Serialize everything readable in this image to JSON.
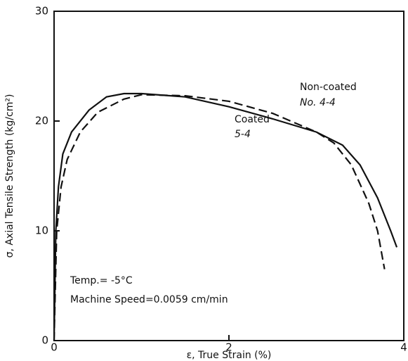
{
  "chart_data": {
    "type": "line",
    "xlabel": "ε, True Strain (%)",
    "ylabel": "σ, Axial Tensile Strength (kg/cm²)",
    "xlim": [
      0,
      4
    ],
    "xticks": [
      0,
      2,
      4
    ],
    "ylim": [
      0,
      30
    ],
    "yticks": [
      0,
      10,
      20,
      30
    ],
    "series": [
      {
        "name": "Coated",
        "color": "#111111",
        "style": "solid",
        "x": [
          0,
          0.02,
          0.05,
          0.1,
          0.2,
          0.4,
          0.6,
          0.8,
          1.0,
          1.5,
          2.0,
          2.5,
          3.0,
          3.3,
          3.5,
          3.7,
          3.85,
          3.92
        ],
        "values": [
          0,
          10,
          14,
          17,
          19,
          21,
          22.2,
          22.5,
          22.5,
          22.2,
          21.3,
          20.2,
          19,
          17.8,
          16,
          13,
          10,
          8.5
        ]
      },
      {
        "name": "Non-coated",
        "color": "#111111",
        "style": "dashed",
        "x": [
          0,
          0.03,
          0.08,
          0.15,
          0.3,
          0.5,
          0.8,
          1.0,
          1.5,
          2.0,
          2.5,
          3.0,
          3.2,
          3.4,
          3.6,
          3.7,
          3.78
        ],
        "values": [
          0,
          10,
          14,
          16.5,
          19,
          20.8,
          22,
          22.4,
          22.3,
          21.8,
          20.7,
          19,
          18,
          16,
          12.5,
          10,
          6.5
        ]
      }
    ],
    "annotations": [
      "5-4",
      "No. 4-4",
      "Temp.= -5°C",
      "Machine Speed=0.0059 cm/min"
    ]
  }
}
